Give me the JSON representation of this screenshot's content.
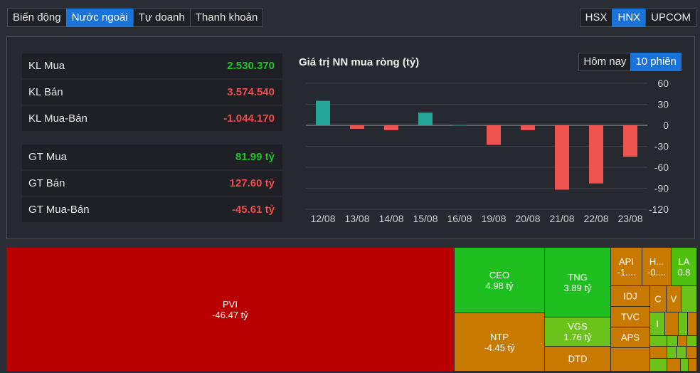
{
  "tabs": [
    "Biến động",
    "Nước ngoài",
    "Tự doanh",
    "Thanh khoản"
  ],
  "exchanges": [
    "HSX",
    "HNX",
    "UPCOM"
  ],
  "stats": {
    "kl_mua": {
      "label": "KL Mua",
      "value": "2.530.370"
    },
    "kl_ban": {
      "label": "KL Bán",
      "value": "3.574.540"
    },
    "kl_net": {
      "label": "KL Mua-Bán",
      "value": "-1.044.170"
    },
    "gt_mua": {
      "label": "GT Mua",
      "value": "81.99 tỷ"
    },
    "gt_ban": {
      "label": "GT Bán",
      "value": "127.60 tỷ"
    },
    "gt_net": {
      "label": "GT Mua-Bán",
      "value": "-45.61 tỷ"
    }
  },
  "chart_title": "Giá trị NN mua ròng (tỷ)",
  "periods": [
    "Hôm nay",
    "10 phiên"
  ],
  "colors": {
    "positive": "#26a69a",
    "negative": "#ef5350",
    "red_cell": "#b80000",
    "green_cell": "#1fbf1f",
    "orange_cell": "#c87a00",
    "lime_cell": "#6ac21a"
  },
  "chart_data": {
    "type": "bar",
    "categories": [
      "12/08",
      "13/08",
      "14/08",
      "15/08",
      "16/08",
      "19/08",
      "20/08",
      "21/08",
      "22/08",
      "23/08"
    ],
    "values": [
      35,
      -5,
      -7,
      18,
      0.5,
      -28,
      -7,
      -92,
      -83,
      -45
    ],
    "yticks": [
      60,
      30,
      0,
      -30,
      -60,
      -90,
      -120
    ],
    "ylim": [
      -120,
      60
    ],
    "grid": true
  },
  "treemap": [
    {
      "name": "PVI",
      "value": "-46.47 tỷ"
    },
    {
      "name": "CEO",
      "value": "4.98 tỷ"
    },
    {
      "name": "NTP",
      "value": "-4.45 tỷ"
    },
    {
      "name": "TNG",
      "value": "3.89 tỷ"
    },
    {
      "name": "VGS",
      "value": "1.76 tỷ"
    },
    {
      "name": "DTD",
      "value": ""
    },
    {
      "name": "API",
      "value": "-1...."
    },
    {
      "name": "H...",
      "value": "-0...."
    },
    {
      "name": "LA",
      "value": "0.8"
    },
    {
      "name": "IDJ",
      "value": ""
    },
    {
      "name": "C",
      "value": ""
    },
    {
      "name": "V",
      "value": ""
    },
    {
      "name": "TVC",
      "value": ""
    },
    {
      "name": "I",
      "value": ""
    },
    {
      "name": "APS",
      "value": ""
    }
  ]
}
